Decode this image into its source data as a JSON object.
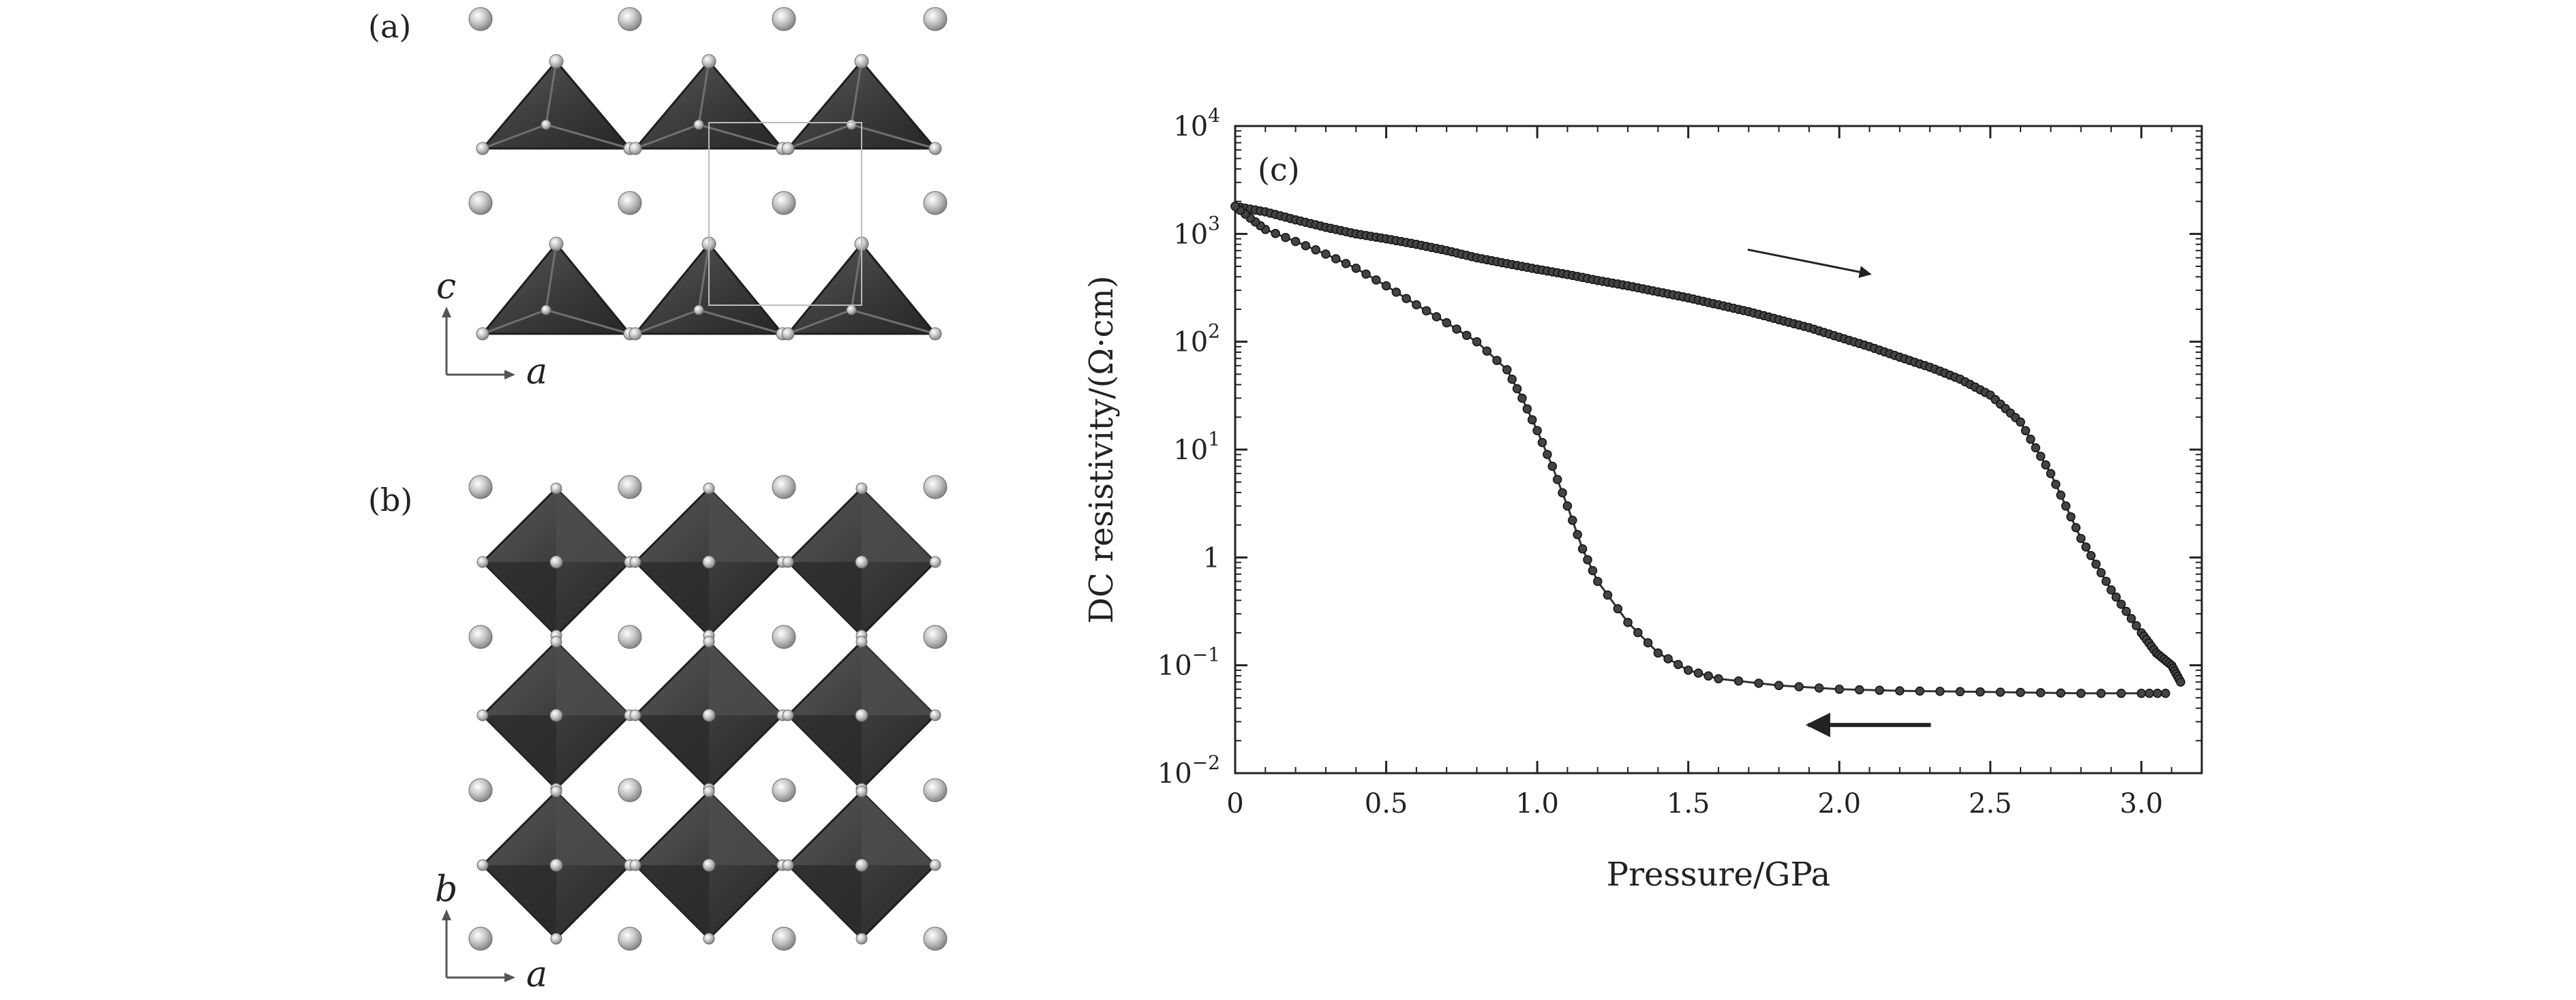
{
  "panels": {
    "a": {
      "label": "(a)",
      "axes": {
        "vertical": "c",
        "horizontal": "a"
      }
    },
    "b": {
      "label": "(b)",
      "axes": {
        "vertical": "b",
        "horizontal": "a"
      }
    }
  },
  "chart_data": {
    "type": "line",
    "panel_label": "(c)",
    "xlabel": "Pressure/GPa",
    "ylabel": "DC resistivity/(Ω·cm)",
    "xlim": [
      0,
      3.2
    ],
    "ylim": [
      0.01,
      10000
    ],
    "yscale": "log",
    "x_ticks": [
      {
        "value": 0,
        "label": "0"
      },
      {
        "value": 0.5,
        "label": "0.5"
      },
      {
        "value": 1.0,
        "label": "1.0"
      },
      {
        "value": 1.5,
        "label": "1.5"
      },
      {
        "value": 2.0,
        "label": "2.0"
      },
      {
        "value": 2.5,
        "label": "2.5"
      },
      {
        "value": 3.0,
        "label": "3.0"
      }
    ],
    "y_ticks": [
      {
        "value": 0.01,
        "base": "10",
        "exp": "−2"
      },
      {
        "value": 0.1,
        "base": "10",
        "exp": "−1"
      },
      {
        "value": 1,
        "base": "1",
        "exp": ""
      },
      {
        "value": 10,
        "base": "10",
        "exp": "1"
      },
      {
        "value": 100,
        "base": "10",
        "exp": "2"
      },
      {
        "value": 1000,
        "base": "10",
        "exp": "3"
      },
      {
        "value": 10000,
        "base": "10",
        "exp": "4"
      }
    ],
    "grid": false,
    "series": [
      {
        "direction": "increasing",
        "x": [
          0,
          0.1,
          0.2,
          0.3,
          0.4,
          0.5,
          0.6,
          0.7,
          0.8,
          0.9,
          1.0,
          1.1,
          1.2,
          1.3,
          1.4,
          1.5,
          1.6,
          1.7,
          1.8,
          1.9,
          2.0,
          2.1,
          2.2,
          2.3,
          2.4,
          2.5,
          2.6,
          2.7,
          2.8,
          2.9,
          3.0,
          3.05,
          3.1,
          3.13
        ],
        "y": [
          1800,
          1600,
          1350,
          1150,
          1000,
          900,
          800,
          700,
          600,
          530,
          470,
          420,
          370,
          330,
          290,
          255,
          220,
          190,
          160,
          135,
          110,
          90,
          72,
          58,
          45,
          32,
          18,
          6.0,
          1.5,
          0.5,
          0.2,
          0.13,
          0.1,
          0.07
        ]
      },
      {
        "direction": "decreasing",
        "x": [
          3.08,
          3.0,
          2.8,
          2.6,
          2.4,
          2.2,
          2.0,
          1.8,
          1.6,
          1.5,
          1.4,
          1.3,
          1.2,
          1.15,
          1.1,
          1.05,
          1.0,
          0.95,
          0.9,
          0.8,
          0.7,
          0.6,
          0.5,
          0.4,
          0.3,
          0.2,
          0.1,
          0.05,
          0
        ],
        "y": [
          0.055,
          0.055,
          0.055,
          0.056,
          0.057,
          0.058,
          0.06,
          0.065,
          0.075,
          0.09,
          0.13,
          0.25,
          0.6,
          1.2,
          3.0,
          7.0,
          15,
          30,
          55,
          100,
          150,
          220,
          330,
          480,
          650,
          850,
          1100,
          1400,
          1800
        ]
      }
    ],
    "annotations": [
      {
        "type": "arrow",
        "direction": "right",
        "near_x": 1.9,
        "near_y": 550
      },
      {
        "type": "arrow",
        "direction": "left",
        "near_x": 2.1,
        "near_y": 0.028
      }
    ]
  }
}
